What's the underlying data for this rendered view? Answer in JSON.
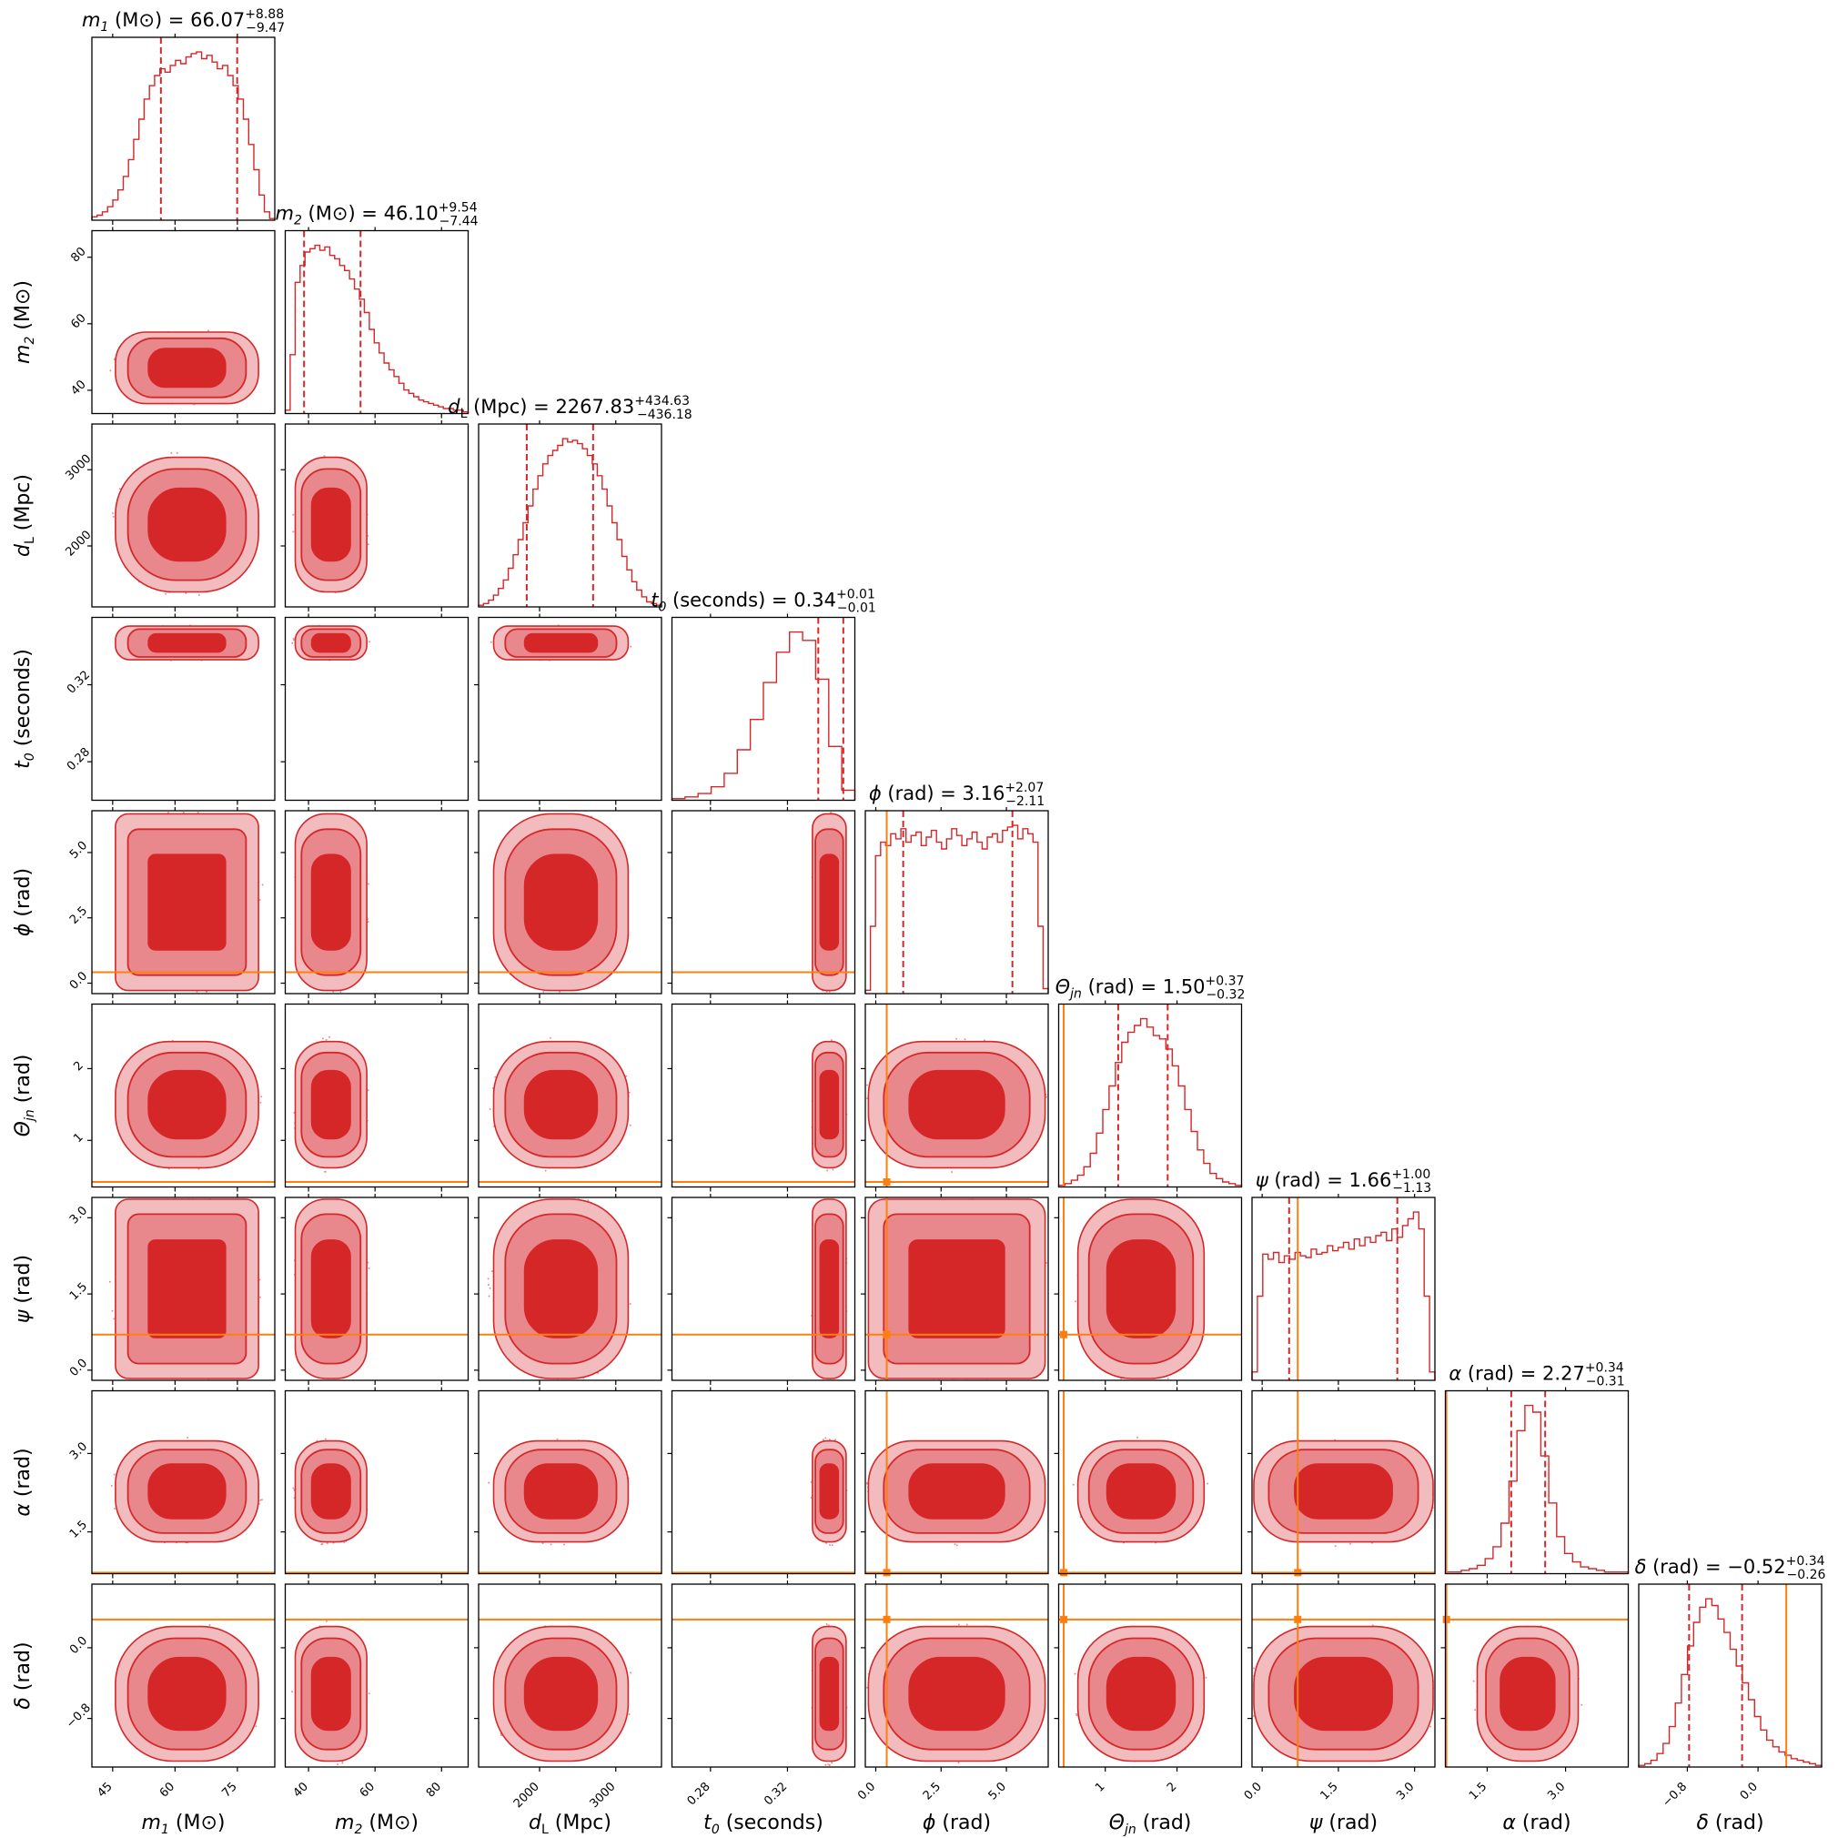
{
  "chart_data": {
    "type": "corner",
    "parameters": [
      {
        "key": "m1",
        "symbol": "m",
        "sub": "1",
        "unit": "(M⊙)",
        "median": "66.07",
        "plus": "+8.88",
        "minus": "−9.47",
        "range": [
          40,
          84
        ],
        "ticks": [
          45,
          60,
          75
        ],
        "tick_labels": [
          "45",
          "60",
          "75"
        ],
        "med_v": 66.07,
        "lo_v": 56.6,
        "hi_v": 74.95,
        "truth": null
      },
      {
        "key": "m2",
        "symbol": "m",
        "sub": "2",
        "unit": "(M⊙)",
        "median": "46.10",
        "plus": "+9.54",
        "minus": "−7.44",
        "range": [
          33,
          88
        ],
        "ticks": [
          40,
          60,
          80
        ],
        "tick_labels": [
          "40",
          "60",
          "80"
        ],
        "med_v": 46.1,
        "lo_v": 38.66,
        "hi_v": 55.64,
        "truth": null
      },
      {
        "key": "dL",
        "symbol": "d",
        "sub": "L",
        "unit": "(Mpc)",
        "median": "2267.83",
        "plus": "+434.63",
        "minus": "−436.18",
        "range": [
          1200,
          3600
        ],
        "ticks": [
          2000,
          3000
        ],
        "tick_labels": [
          "2000",
          "3000"
        ],
        "med_v": 2267.83,
        "lo_v": 1831.65,
        "hi_v": 2702.46,
        "truth": null
      },
      {
        "key": "t0",
        "symbol": "t",
        "sub": "0",
        "unit": "(seconds)",
        "median": "0.34",
        "plus": "+0.01",
        "minus": "−0.01",
        "range": [
          0.26,
          0.355
        ],
        "ticks": [
          0.28,
          0.32
        ],
        "tick_labels": [
          "0.28",
          "0.32"
        ],
        "med_v": 0.34,
        "lo_v": 0.336,
        "hi_v": 0.349,
        "truth": null
      },
      {
        "key": "phi",
        "symbol": "ϕ",
        "sub": "",
        "unit": "(rad)",
        "median": "3.16",
        "plus": "+2.07",
        "minus": "−2.11",
        "range": [
          -0.4,
          6.6
        ],
        "ticks": [
          0,
          2.5,
          5
        ],
        "tick_labels": [
          "0.0",
          "2.5",
          "5.0"
        ],
        "med_v": 3.16,
        "lo_v": 1.05,
        "hi_v": 5.23,
        "truth": 0.42
      },
      {
        "key": "theta",
        "symbol": "Θ",
        "sub": "jn",
        "unit": "(rad)",
        "median": "1.50",
        "plus": "+0.37",
        "minus": "−0.32",
        "range": [
          0.35,
          2.9
        ],
        "ticks": [
          1,
          2
        ],
        "tick_labels": [
          "1",
          "2"
        ],
        "med_v": 1.5,
        "lo_v": 1.18,
        "hi_v": 1.87,
        "truth": 0.42
      },
      {
        "key": "psi",
        "symbol": "ψ",
        "sub": "",
        "unit": "(rad)",
        "median": "1.66",
        "plus": "+1.00",
        "minus": "−1.13",
        "range": [
          -0.2,
          3.4
        ],
        "ticks": [
          0,
          1.5,
          3
        ],
        "tick_labels": [
          "0.0",
          "1.5",
          "3.0"
        ],
        "med_v": 1.66,
        "lo_v": 0.53,
        "hi_v": 2.66,
        "truth": 0.7
      },
      {
        "key": "alpha",
        "symbol": "α",
        "sub": "",
        "unit": "(rad)",
        "median": "2.27",
        "plus": "+0.34",
        "minus": "−0.31",
        "range": [
          0.7,
          4.2
        ],
        "ticks": [
          1.5,
          3
        ],
        "tick_labels": [
          "1.5",
          "3.0"
        ],
        "med_v": 2.27,
        "lo_v": 1.96,
        "hi_v": 2.61,
        "truth": 0.72
      },
      {
        "key": "delta",
        "symbol": "δ",
        "sub": "",
        "unit": "(rad)",
        "median": "−0.52",
        "plus": "+0.34",
        "minus": "−0.26",
        "range": [
          -1.35,
          0.72
        ],
        "ticks": [
          -0.8,
          0
        ],
        "tick_labels": [
          "−0.8",
          "0.0"
        ],
        "med_v": -0.52,
        "lo_v": -0.78,
        "hi_v": -0.18,
        "truth": 0.32
      }
    ],
    "histograms": [
      [
        0.02,
        0.03,
        0.05,
        0.08,
        0.12,
        0.18,
        0.26,
        0.36,
        0.48,
        0.6,
        0.72,
        0.8,
        0.86,
        0.9,
        0.88,
        0.92,
        0.95,
        0.93,
        0.97,
        0.99,
        1.0,
        0.96,
        0.98,
        0.94,
        0.9,
        0.92,
        0.86,
        0.8,
        0.72,
        0.6,
        0.45,
        0.3,
        0.15,
        0.05,
        0.01
      ],
      [
        0.02,
        0.35,
        0.78,
        0.88,
        0.96,
        0.98,
        1.0,
        0.97,
        0.99,
        0.94,
        0.92,
        0.88,
        0.85,
        0.8,
        0.74,
        0.68,
        0.6,
        0.5,
        0.42,
        0.36,
        0.3,
        0.26,
        0.22,
        0.18,
        0.14,
        0.12,
        0.1,
        0.08,
        0.07,
        0.06,
        0.05,
        0.04,
        0.03,
        0.03,
        0.02,
        0.02,
        0.01
      ],
      [
        0.01,
        0.02,
        0.04,
        0.07,
        0.11,
        0.16,
        0.23,
        0.31,
        0.4,
        0.5,
        0.6,
        0.7,
        0.78,
        0.85,
        0.9,
        0.93,
        0.96,
        1.0,
        0.98,
        0.99,
        0.97,
        0.94,
        0.9,
        0.85,
        0.78,
        0.7,
        0.6,
        0.5,
        0.4,
        0.3,
        0.22,
        0.15,
        0.1,
        0.06,
        0.03,
        0.02,
        0.01
      ],
      [
        0.01,
        0.02,
        0.04,
        0.08,
        0.16,
        0.3,
        0.48,
        0.7,
        0.88,
        1.0,
        0.95,
        0.72,
        0.32,
        0.06
      ],
      [
        0.02,
        0.4,
        0.82,
        0.9,
        0.88,
        0.95,
        0.92,
        0.98,
        0.9,
        0.94,
        0.96,
        0.88,
        0.93,
        0.97,
        0.9,
        0.86,
        0.92,
        0.98,
        0.94,
        0.88,
        0.92,
        0.96,
        0.9,
        0.86,
        0.93,
        0.95,
        0.9,
        0.97,
        0.99,
        1.0,
        0.92,
        0.98,
        0.95,
        0.9,
        0.4,
        0.03
      ],
      [
        0.01,
        0.02,
        0.04,
        0.07,
        0.12,
        0.2,
        0.32,
        0.46,
        0.6,
        0.74,
        0.86,
        0.92,
        0.96,
        1.0,
        0.95,
        0.9,
        0.88,
        0.82,
        0.72,
        0.6,
        0.46,
        0.33,
        0.22,
        0.14,
        0.08,
        0.05,
        0.03,
        0.02,
        0.01
      ],
      [
        0.05,
        0.5,
        0.75,
        0.72,
        0.76,
        0.7,
        0.74,
        0.72,
        0.76,
        0.74,
        0.73,
        0.78,
        0.75,
        0.76,
        0.8,
        0.77,
        0.79,
        0.82,
        0.78,
        0.84,
        0.8,
        0.85,
        0.82,
        0.86,
        0.88,
        0.83,
        0.9,
        0.85,
        0.92,
        0.96,
        1.0,
        0.9,
        0.5,
        0.05
      ],
      [
        0.01,
        0.01,
        0.02,
        0.03,
        0.05,
        0.09,
        0.16,
        0.3,
        0.55,
        0.85,
        1.0,
        0.96,
        0.7,
        0.42,
        0.22,
        0.12,
        0.07,
        0.04,
        0.03,
        0.02,
        0.01,
        0.01,
        0.01
      ],
      [
        0.01,
        0.02,
        0.04,
        0.08,
        0.14,
        0.24,
        0.38,
        0.55,
        0.72,
        0.86,
        0.95,
        1.0,
        0.96,
        0.88,
        0.8,
        0.7,
        0.6,
        0.5,
        0.4,
        0.3,
        0.22,
        0.16,
        0.12,
        0.09,
        0.07,
        0.05,
        0.04,
        0.03,
        0.02,
        0.01
      ]
    ]
  }
}
